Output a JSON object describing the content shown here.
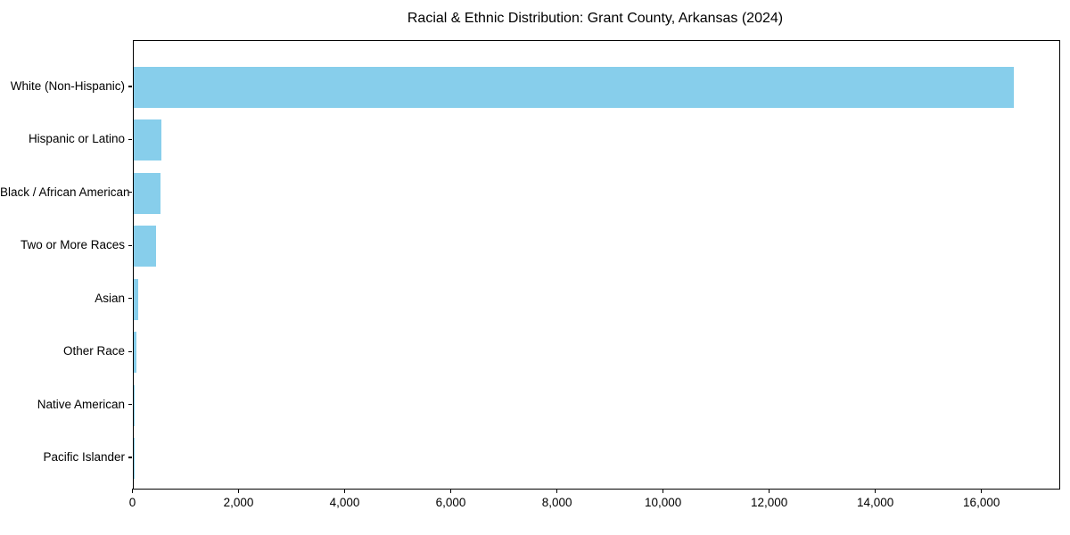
{
  "figure": {
    "background_color": "#ffffff",
    "spine_color": "#000000",
    "text_color": "#000000"
  },
  "chart_data": {
    "type": "bar",
    "orientation": "horizontal",
    "title": "Racial & Ethnic Distribution: Grant County, Arkansas (2024)",
    "xlabel": "",
    "ylabel": "",
    "categories": [
      "White (Non-Hispanic)",
      "Hispanic or Latino",
      "Black / African American",
      "Two or More Races",
      "Asian",
      "Other Race",
      "Native American",
      "Pacific Islander"
    ],
    "values": [
      16600,
      530,
      510,
      430,
      100,
      60,
      30,
      5
    ],
    "bar_color": "#87CEEB",
    "xlim": [
      0,
      17450
    ],
    "x_ticks": [
      0,
      2000,
      4000,
      6000,
      8000,
      10000,
      12000,
      14000,
      16000
    ],
    "x_tick_labels": [
      "0",
      "2,000",
      "4,000",
      "6,000",
      "8,000",
      "10,000",
      "12,000",
      "14,000",
      "16,000"
    ],
    "grid": false,
    "legend": null
  }
}
